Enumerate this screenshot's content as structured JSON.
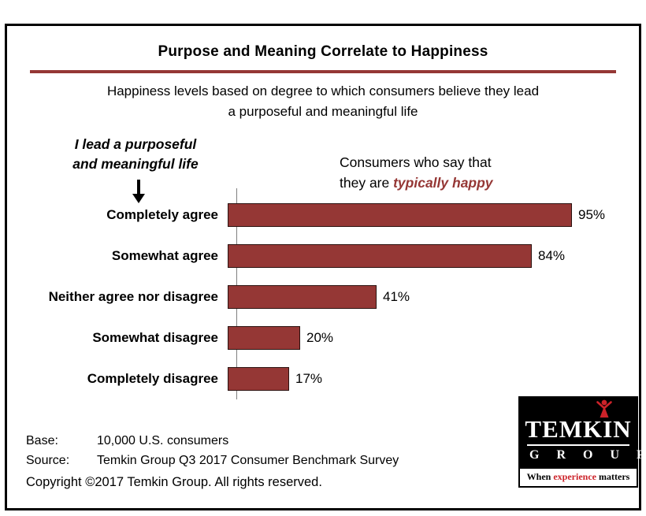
{
  "title": "Purpose and Meaning Correlate to Happiness",
  "subtitle_line1": "Happiness levels based on degree to which consumers believe they lead",
  "subtitle_line2": "a purposeful and meaningful life",
  "annotations": {
    "left_line1": "I lead a purposeful",
    "left_line2": "and meaningful life",
    "right_line1": "Consumers who say that",
    "right_line2_plain": "they are ",
    "right_line2_emphasis": "typically happy"
  },
  "chart_data": {
    "type": "bar",
    "orientation": "horizontal",
    "title": "Purpose and Meaning Correlate to Happiness",
    "categories": [
      "Completely agree",
      "Somewhat agree",
      "Neither agree nor disagree",
      "Somewhat disagree",
      "Completely disagree"
    ],
    "values": [
      95,
      84,
      41,
      20,
      17
    ],
    "value_suffix": "%",
    "xlim": [
      0,
      100
    ],
    "bar_color": "#953735",
    "grid": false,
    "legend": "none",
    "series_label": "Consumers who say that they are typically happy"
  },
  "footer": {
    "base_label": "Base:",
    "base_value": "10,000 U.S. consumers",
    "source_label": "Source:",
    "source_value": "Temkin Group Q3 2017 Consumer Benchmark Survey",
    "copyright": "Copyright ©2017 Temkin Group. All rights reserved."
  },
  "logo": {
    "name": "TEMKIN",
    "group": "G R O U P",
    "tagline_when": "When ",
    "tagline_experience": "experience",
    "tagline_matters": " matters"
  },
  "colors": {
    "accent": "#953735",
    "logo_red": "#cc2229",
    "frame_border": "#000000"
  }
}
